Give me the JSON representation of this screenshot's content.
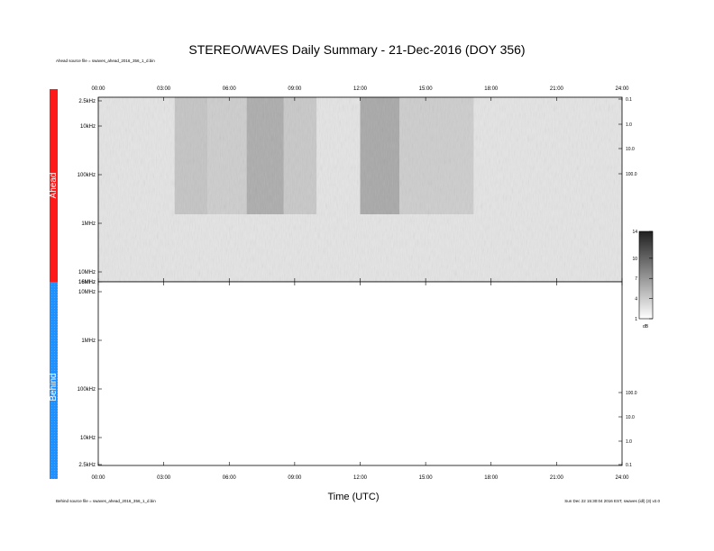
{
  "title": "STEREO/WAVES Daily Summary - 21-Dec-2016 (DOY 356)",
  "ahead_source": "Ahead source file = swaves_ahead_2016_356_1_d.bin",
  "behind_source": "Behind source file = swaves_ahead_2016_356_1_d.bin",
  "footer_right": "Sun Dec 22 15:30:04 2016 EST, swaves (idl) (3) v2.0",
  "x_axis_label": "Time (UTC)",
  "chart_data": [
    {
      "panel": "Ahead",
      "type": "heatmap",
      "color": "#ff1a1a",
      "x_ticks": [
        "00:00",
        "03:00",
        "06:00",
        "09:00",
        "12:00",
        "15:00",
        "18:00",
        "21:00",
        "24:00"
      ],
      "x_range_hours": [
        0,
        24
      ],
      "y_ticks_left": [
        "2.5kHz",
        "10kHz",
        "100kHz",
        "1MHz",
        "10MHz",
        "16MHz"
      ],
      "y_ticks_right": [
        "0.1",
        "1.0",
        "10.0",
        "100.0"
      ],
      "intensity_bands_hours": [
        {
          "start": 3.5,
          "end": 5.0,
          "level": 0.35
        },
        {
          "start": 5.0,
          "end": 6.8,
          "level": 0.25
        },
        {
          "start": 6.8,
          "end": 8.5,
          "level": 0.6
        },
        {
          "start": 8.5,
          "end": 10.0,
          "level": 0.3
        },
        {
          "start": 12.0,
          "end": 13.8,
          "level": 0.65
        },
        {
          "start": 13.8,
          "end": 17.2,
          "level": 0.25
        }
      ]
    },
    {
      "panel": "Behind",
      "type": "heatmap",
      "color": "#1e90ff",
      "x_ticks": [
        "00:00",
        "03:00",
        "06:00",
        "09:00",
        "12:00",
        "15:00",
        "18:00",
        "21:00",
        "24:00"
      ],
      "x_range_hours": [
        0,
        24
      ],
      "y_ticks_left": [
        "16MHz",
        "10MHz",
        "1MHz",
        "100kHz",
        "10kHz",
        "2.5kHz"
      ],
      "y_ticks_right": [
        "100.0",
        "10.0",
        "1.0",
        "0.1"
      ]
    }
  ],
  "colorbar": {
    "ticks": [
      "14",
      "10",
      "7",
      "4",
      "1"
    ],
    "unit": "dB",
    "range": [
      1,
      14
    ]
  }
}
